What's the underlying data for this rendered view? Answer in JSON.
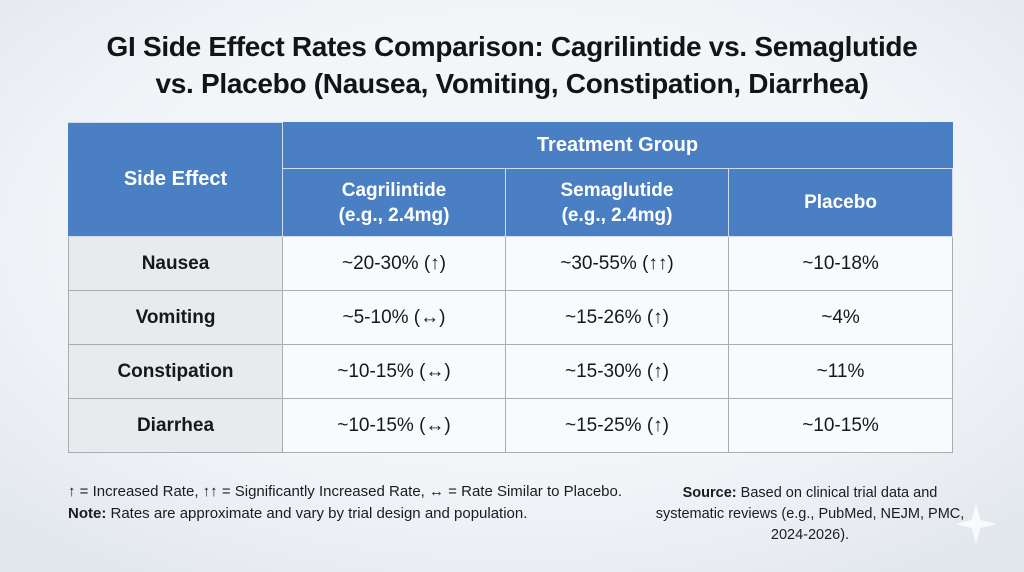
{
  "page": {
    "title_line1": "GI Side Effect Rates Comparison: Cagrilintide vs. Semaglutide",
    "title_line2": "vs. Placebo (Nausea, Vomiting, Constipation, Diarrhea)"
  },
  "table": {
    "corner_header": "Side Effect",
    "group_header": "Treatment Group",
    "columns": [
      {
        "name": "Cagrilintide",
        "dose": "(e.g., 2.4mg)"
      },
      {
        "name": "Semaglutide",
        "dose": "(e.g., 2.4mg)"
      },
      {
        "name": "Placebo",
        "dose": ""
      }
    ],
    "rows": [
      {
        "label": "Nausea",
        "values": [
          "~20-30% (↑)",
          "~30-55% (↑↑)",
          "~10-18%"
        ]
      },
      {
        "label": "Vomiting",
        "values": [
          "~5-10% (↔)",
          "~15-26% (↑)",
          "~4%"
        ]
      },
      {
        "label": "Constipation",
        "values": [
          "~10-15% (↔)",
          "~15-30% (↑)",
          "~11%"
        ]
      },
      {
        "label": "Diarrhea",
        "values": [
          "~10-15% (↔)",
          "~15-25% (↑)",
          "~10-15%"
        ]
      }
    ]
  },
  "footnotes": {
    "legend": "↑ = Increased Rate, ↑↑ = Significantly Increased Rate, ↔ = Rate Similar to Placebo.",
    "note_label": "Note:",
    "note_text": " Rates are approximate and vary by trial design and population.",
    "source_label": "Source:",
    "source_text": " Based on clinical trial data and systematic reviews (e.g., PubMed, NEJM, PMC, 2024-2026)."
  },
  "icons": {
    "sparkle": "four-pointed-star-watermark"
  },
  "colors": {
    "header_blue": "#4a80c3",
    "header_divider": "#cddcee",
    "row_label_bg": "#e8eaed",
    "cell_bg": "#f8fafb",
    "body_border": "#a8adb2",
    "background": "#eff2f6",
    "title_text": "#131416",
    "header_text": "#ffffff"
  },
  "chart_data": {
    "type": "table",
    "title": "GI Side Effect Rates Comparison: Cagrilintide vs. Semaglutide vs. Placebo (Nausea, Vomiting, Constipation, Diarrhea)",
    "column_group": {
      "label": "Treatment Group",
      "spans": [
        "Cagrilintide (e.g., 2.4mg)",
        "Semaglutide (e.g., 2.4mg)",
        "Placebo"
      ]
    },
    "columns": [
      "Side Effect",
      "Cagrilintide (e.g., 2.4mg)",
      "Semaglutide (e.g., 2.4mg)",
      "Placebo"
    ],
    "rows": [
      [
        "Nausea",
        "~20-30% (↑)",
        "~30-55% (↑↑)",
        "~10-18%"
      ],
      [
        "Vomiting",
        "~5-10% (↔)",
        "~15-26% (↑)",
        "~4%"
      ],
      [
        "Constipation",
        "~10-15% (↔)",
        "~15-30% (↑)",
        "~11%"
      ],
      [
        "Diarrhea",
        "~10-15% (↔)",
        "~15-25% (↑)",
        "~10-15%"
      ]
    ],
    "legend": "↑ = Increased Rate, ↑↑ = Significantly Increased Rate, ↔ = Rate Similar to Placebo.",
    "note": "Rates are approximate and vary by trial design and population.",
    "source": "Based on clinical trial data and systematic reviews (e.g., PubMed, NEJM, PMC, 2024-2026)."
  }
}
